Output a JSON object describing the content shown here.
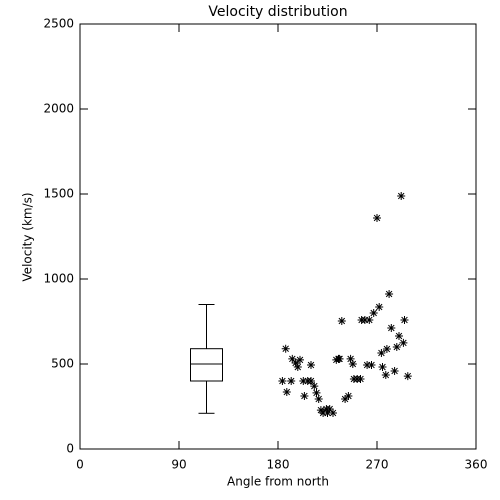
{
  "chart_data": {
    "type": "scatter",
    "title": "Velocity distribution",
    "x_label": "Angle from north",
    "y_label": "Velocity (km/s)",
    "xlim": [
      0,
      360
    ],
    "ylim": [
      0,
      2500
    ],
    "xticks": [
      0,
      90,
      180,
      270,
      360
    ],
    "yticks": [
      0,
      500,
      1000,
      1500,
      2000,
      2500
    ],
    "color": "#000000",
    "x": [
      187,
      184,
      188,
      192,
      193,
      196,
      198,
      200,
      203,
      204,
      207,
      210,
      210,
      213,
      215,
      217,
      219,
      221,
      224,
      225,
      227,
      230,
      233,
      235,
      236,
      238,
      241,
      244,
      246,
      248,
      249,
      252,
      255,
      256,
      259,
      261,
      263,
      265,
      267,
      270,
      272,
      274,
      275,
      278,
      279,
      281,
      283,
      286,
      288,
      290,
      292,
      294,
      295,
      298
    ],
    "values": [
      590,
      400,
      335,
      400,
      530,
      506,
      482,
      524,
      400,
      312,
      400,
      494,
      400,
      370,
      330,
      294,
      229,
      212,
      235,
      212,
      235,
      212,
      524,
      530,
      530,
      753,
      294,
      312,
      530,
      500,
      412,
      412,
      412,
      759,
      759,
      494,
      759,
      494,
      800,
      1359,
      835,
      565,
      482,
      435,
      588,
      912,
      712,
      459,
      600,
      665,
      1488,
      624,
      759,
      429
    ],
    "box": {
      "x": 115,
      "whislo": 210,
      "q1": 400,
      "med": 500,
      "q3": 590,
      "whishi": 850
    }
  }
}
